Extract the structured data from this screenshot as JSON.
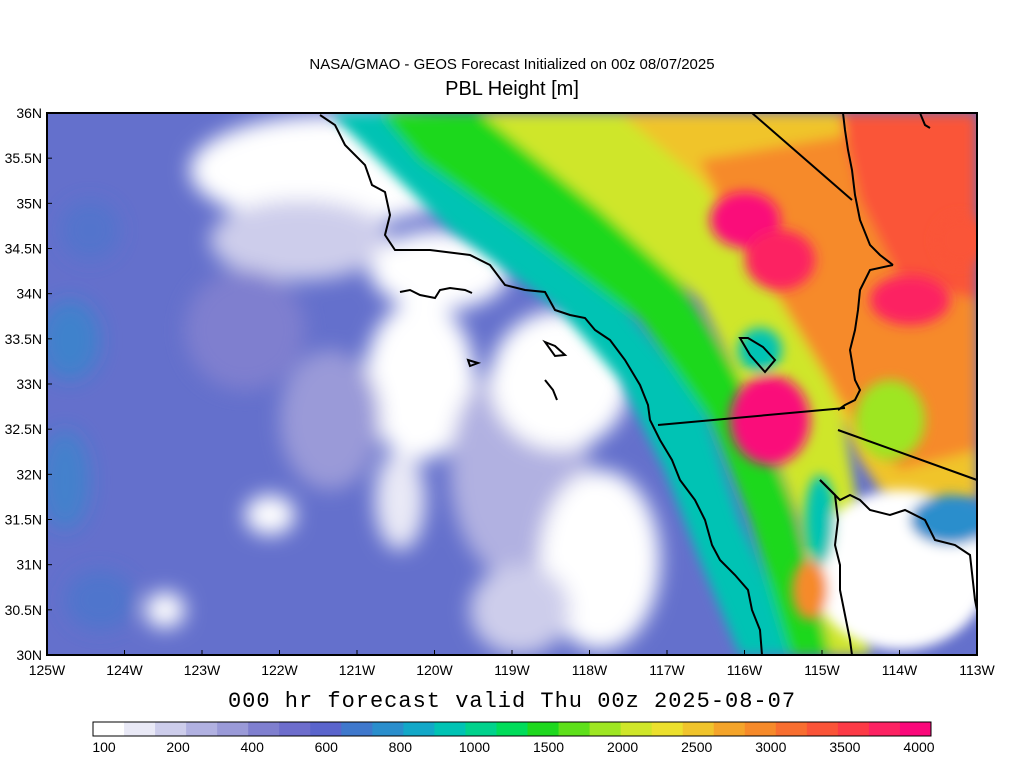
{
  "header": {
    "suptitle": "NASA/GMAO - GEOS Forecast Initialized on 00z 08/07/2025",
    "title": "PBL Height [m]"
  },
  "map": {
    "lon_range": [
      -125,
      -113
    ],
    "lat_range": [
      30,
      36
    ],
    "lon_ticks": [
      "125W",
      "124W",
      "123W",
      "122W",
      "121W",
      "120W",
      "119W",
      "118W",
      "117W",
      "116W",
      "115W",
      "114W",
      "113W"
    ],
    "lat_ticks": [
      "30N",
      "30.5N",
      "31N",
      "31.5N",
      "32N",
      "32.5N",
      "33N",
      "33.5N",
      "34N",
      "34.5N",
      "35N",
      "35.5N",
      "36N"
    ]
  },
  "footer": {
    "valid_text": "000 hr forecast valid Thu 00z 2025-08-07"
  },
  "colorbar": {
    "labels": [
      "100",
      "200",
      "400",
      "600",
      "800",
      "1000",
      "1500",
      "2000",
      "2500",
      "3000",
      "3500",
      "4000"
    ],
    "colors": [
      "#ffffff",
      "#e9e9f6",
      "#cdcdeb",
      "#b1b1e1",
      "#9a9ad8",
      "#7f7fcf",
      "#6d6dcc",
      "#5a64cc",
      "#3f78cc",
      "#2a8ecc",
      "#12a8c8",
      "#00c3b4",
      "#00d28c",
      "#00dc5a",
      "#1ed81e",
      "#5ee01a",
      "#9ee622",
      "#cfe62a",
      "#ece02e",
      "#f0c42c",
      "#f4a42a",
      "#f68a2a",
      "#f86e30",
      "#fa5438",
      "#fc3a46",
      "#fc2262",
      "#fa087a"
    ]
  }
}
